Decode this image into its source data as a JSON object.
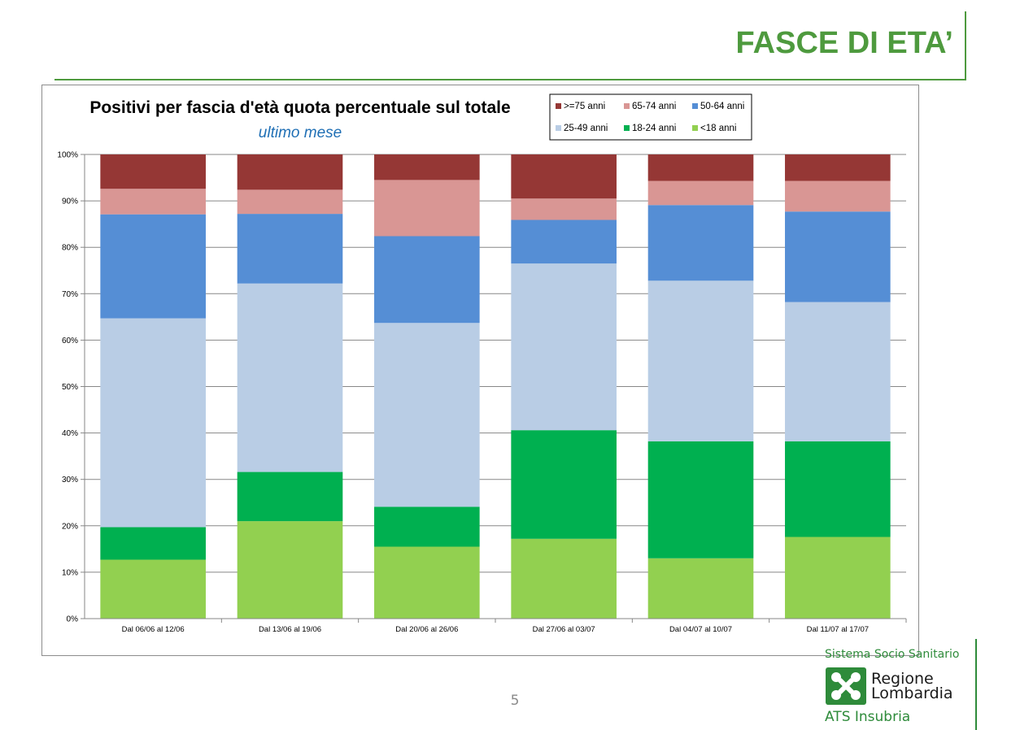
{
  "slide": {
    "title": "FASCE DI ETA’",
    "page_number": "5"
  },
  "logo": {
    "system": "Sistema Socio Sanitario",
    "region_line1": "Regione",
    "region_line2": "Lombardia",
    "agency": "ATS Insubria",
    "icon": "lombardy-rose-icon"
  },
  "chart_data": {
    "type": "bar",
    "stacked": true,
    "title": "Positivi per fascia d'età quota percentuale sul totale",
    "subtitle": "ultimo mese",
    "xlabel": "",
    "ylabel": "",
    "ylim": [
      0,
      100
    ],
    "y_ticks": [
      "0%",
      "10%",
      "20%",
      "30%",
      "40%",
      "50%",
      "60%",
      "70%",
      "80%",
      "90%",
      "100%"
    ],
    "grid": true,
    "legend_position": "top-right",
    "categories": [
      "Dal 06/06 al 12/06",
      "Dal 13/06 al 19/06",
      "Dal 20/06 al 26/06",
      "Dal 27/06 al 03/07",
      "Dal 04/07 al 10/07",
      "Dal 11/07 al 17/07"
    ],
    "series": [
      {
        "name": "<18 anni",
        "color": "#92d050",
        "values": [
          12.7,
          21.0,
          15.5,
          17.2,
          13.0,
          17.6
        ]
      },
      {
        "name": "18-24 anni",
        "color": "#00b050",
        "values": [
          7.0,
          10.6,
          8.6,
          23.4,
          25.2,
          20.6
        ]
      },
      {
        "name": "25-49 anni",
        "color": "#b9cde5",
        "values": [
          45.0,
          40.6,
          39.6,
          35.9,
          34.6,
          30.0
        ]
      },
      {
        "name": "50-64 anni",
        "color": "#558ed5",
        "values": [
          22.4,
          15.0,
          18.7,
          9.4,
          16.3,
          19.5
        ]
      },
      {
        "name": "65-74 anni",
        "color": "#d99694",
        "values": [
          5.5,
          5.2,
          12.1,
          4.6,
          5.2,
          6.6
        ]
      },
      {
        "name": ">=75 anni",
        "color": "#953735",
        "values": [
          7.4,
          7.6,
          5.5,
          9.5,
          5.7,
          5.7
        ]
      }
    ],
    "legend_order": [
      ">=75 anni",
      "65-74 anni",
      "50-64 anni",
      "25-49 anni",
      "18-24 anni",
      "<18 anni"
    ]
  }
}
